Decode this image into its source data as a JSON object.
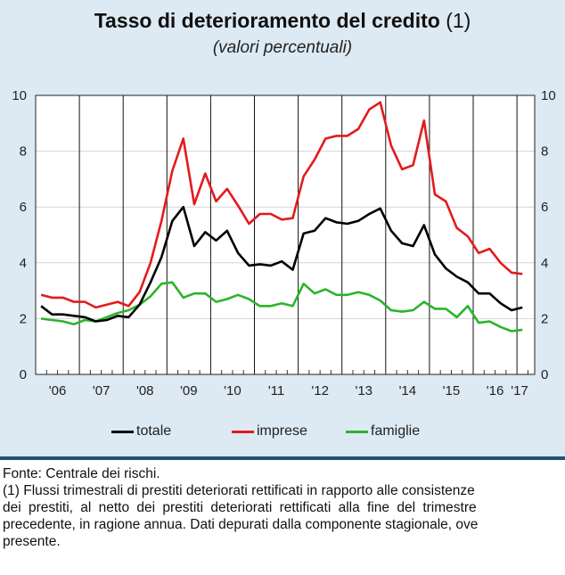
{
  "chart_data": {
    "type": "line",
    "title": "Tasso di deterioramento del credito",
    "title_note": "(1)",
    "subtitle": "(valori percentuali)",
    "x_tick_labels": [
      "'06",
      "'07",
      "'08",
      "'09",
      "'10",
      "'11",
      "'12",
      "'13",
      "'14",
      "'15",
      "'16",
      "'17"
    ],
    "x_frequency": "quarterly, 2006 Q1 - 2017 Q1",
    "ylim": [
      0,
      10
    ],
    "y_ticks": [
      "0",
      "2",
      "4",
      "6",
      "8",
      "10"
    ],
    "grid": true,
    "legend_position": "bottom",
    "series": [
      {
        "name": "totale",
        "color": "#000000",
        "values": [
          2.45,
          2.15,
          2.15,
          2.1,
          2.05,
          1.9,
          1.95,
          2.1,
          2.05,
          2.5,
          3.3,
          4.2,
          5.5,
          6.0,
          4.6,
          5.1,
          4.8,
          5.15,
          4.35,
          3.9,
          3.95,
          3.9,
          4.05,
          3.75,
          5.05,
          5.15,
          5.6,
          5.45,
          5.4,
          5.5,
          5.75,
          5.95,
          5.15,
          4.7,
          4.6,
          5.35,
          4.3,
          3.8,
          3.5,
          3.3,
          2.9,
          2.9,
          2.55,
          2.3,
          2.4
        ]
      },
      {
        "name": "imprese",
        "color": "#e41a1c",
        "values": [
          2.85,
          2.75,
          2.75,
          2.6,
          2.6,
          2.4,
          2.5,
          2.6,
          2.45,
          2.95,
          4.0,
          5.5,
          7.3,
          8.45,
          6.1,
          7.2,
          6.2,
          6.65,
          6.05,
          5.4,
          5.75,
          5.75,
          5.55,
          5.6,
          7.1,
          7.7,
          8.45,
          8.55,
          8.55,
          8.8,
          9.5,
          9.75,
          8.2,
          7.35,
          7.5,
          9.1,
          6.45,
          6.2,
          5.25,
          4.95,
          4.35,
          4.5,
          4.0,
          3.65,
          3.6
        ]
      },
      {
        "name": "famiglie",
        "color": "#2ab52a",
        "values": [
          2.0,
          1.95,
          1.9,
          1.8,
          1.95,
          1.9,
          2.05,
          2.2,
          2.3,
          2.5,
          2.8,
          3.25,
          3.3,
          2.75,
          2.9,
          2.9,
          2.6,
          2.7,
          2.85,
          2.7,
          2.45,
          2.45,
          2.55,
          2.45,
          3.25,
          2.9,
          3.05,
          2.85,
          2.85,
          2.95,
          2.85,
          2.65,
          2.3,
          2.25,
          2.3,
          2.6,
          2.35,
          2.35,
          2.05,
          2.45,
          1.85,
          1.9,
          1.7,
          1.55,
          1.6
        ]
      }
    ]
  },
  "notes": [
    "Fonte: Centrale dei rischi.",
    "(1) Flussi trimestrali di prestiti deteriorati rettificati in rapporto alle consistenze",
    "dei prestiti, al netto dei prestiti deteriorati rettificati alla fine del trimestre",
    "precedente, in ragione annua. Dati depurati dalla componente stagionale, ove",
    "presente."
  ]
}
